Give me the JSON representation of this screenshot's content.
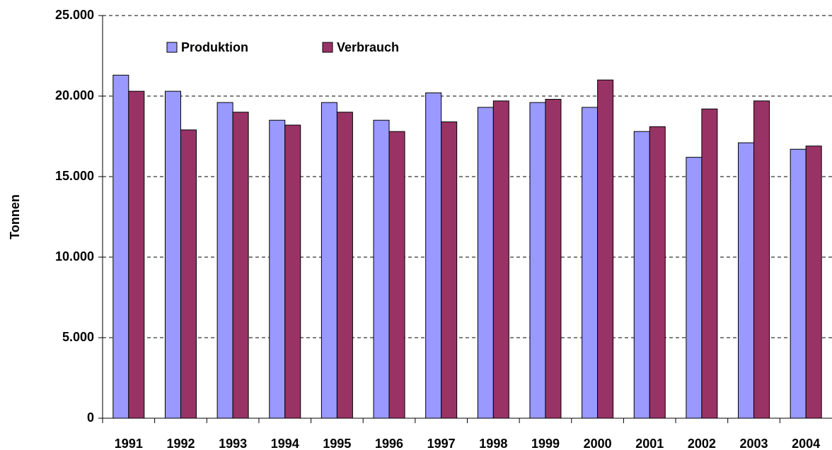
{
  "chart_data": {
    "type": "bar",
    "y_label": "Tonnen",
    "categories": [
      "1991",
      "1992",
      "1993",
      "1994",
      "1995",
      "1996",
      "1997",
      "1998",
      "1999",
      "2000",
      "2001",
      "2002",
      "2003",
      "2004"
    ],
    "series": [
      {
        "name": "Produktion",
        "color": "#9999ff",
        "values": [
          21300,
          20300,
          19600,
          18500,
          19600,
          18500,
          20200,
          19300,
          19600,
          19300,
          17800,
          16200,
          17100,
          16700
        ]
      },
      {
        "name": "Verbrauch",
        "color": "#993366",
        "values": [
          20300,
          17900,
          19000,
          18200,
          19000,
          17800,
          18400,
          19700,
          19800,
          21000,
          18100,
          19200,
          19700,
          16900
        ]
      }
    ],
    "ylim": [
      0,
      25000
    ],
    "yticks": [
      {
        "value": 0,
        "label": "0"
      },
      {
        "value": 5000,
        "label": "5.000"
      },
      {
        "value": 10000,
        "label": "10.000"
      },
      {
        "value": 15000,
        "label": "15.000"
      },
      {
        "value": 20000,
        "label": "20.000"
      },
      {
        "value": 25000,
        "label": "25.000"
      }
    ],
    "grid": true,
    "legend": "top"
  }
}
